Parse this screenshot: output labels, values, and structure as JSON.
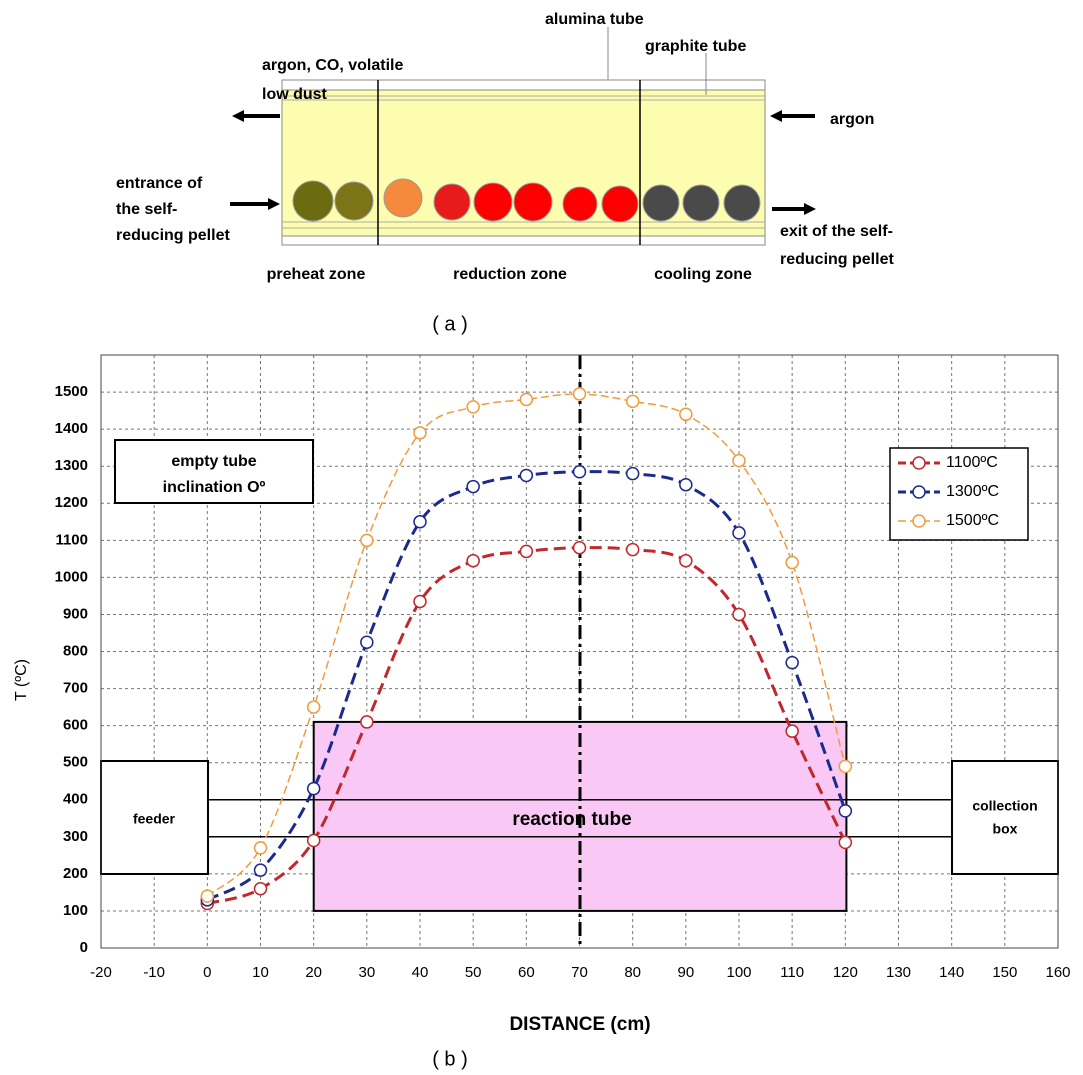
{
  "figure_a": {
    "labels": {
      "alumina_tube": "alumina tube",
      "graphite_tube": "graphite tube",
      "outlet": [
        "argon, CO, volatile",
        "low dust"
      ],
      "argon": "argon",
      "entrance": [
        "entrance of",
        "the self-",
        "reducing pellet"
      ],
      "exit": [
        "exit of the self-",
        "reducing pellet"
      ],
      "zones": [
        "preheat zone",
        "reduction zone",
        "cooling zone"
      ]
    },
    "caption": "( a )"
  },
  "chart_data": {
    "type": "line",
    "caption": "( b )",
    "x_label": "DISTANCE (cm)",
    "y_label": "T (ºC)",
    "annotations": {
      "note": [
        "empty tube",
        "inclination Oº"
      ],
      "feeder": "feeder",
      "reaction_tube": "reaction tube",
      "collection_box": [
        "collection",
        "box"
      ]
    },
    "x": [
      0,
      10,
      20,
      30,
      40,
      50,
      60,
      70,
      80,
      90,
      100,
      110,
      120
    ],
    "series": [
      {
        "name": "1100ºC",
        "color": "#c0282d",
        "values": [
          120,
          160,
          290,
          610,
          935,
          1045,
          1070,
          1080,
          1075,
          1045,
          900,
          585,
          285
        ]
      },
      {
        "name": "1300ºC",
        "color": "#1c2a8c",
        "values": [
          130,
          210,
          430,
          825,
          1150,
          1245,
          1275,
          1285,
          1280,
          1250,
          1120,
          770,
          370
        ]
      },
      {
        "name": "1500ºC",
        "color": "#f39a3c",
        "values": [
          140,
          270,
          650,
          1100,
          1390,
          1460,
          1480,
          1495,
          1475,
          1440,
          1315,
          1040,
          490
        ]
      }
    ],
    "xlim": [
      -20,
      160
    ],
    "xticks": [
      -20,
      -10,
      0,
      10,
      20,
      30,
      40,
      50,
      60,
      70,
      80,
      90,
      100,
      110,
      120,
      130,
      140,
      150,
      160
    ],
    "ylim": [
      0,
      1600
    ],
    "yticks": [
      0,
      100,
      200,
      300,
      400,
      500,
      600,
      700,
      800,
      900,
      1000,
      1100,
      1200,
      1300,
      1400,
      1500
    ],
    "grid": true
  }
}
